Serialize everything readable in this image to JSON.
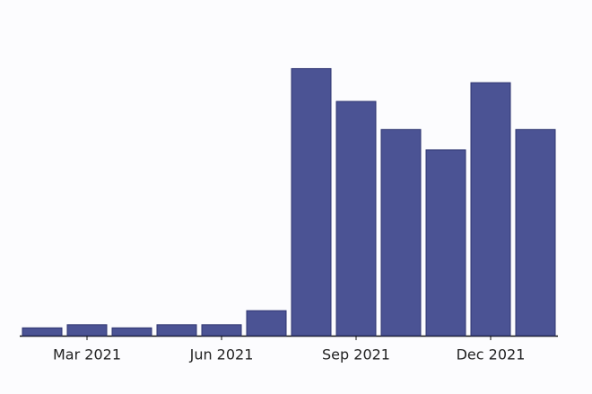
{
  "chart_data": {
    "type": "bar",
    "categories": [
      null,
      "Mar 2021",
      null,
      null,
      "Jun 2021",
      null,
      null,
      "Sep 2021",
      null,
      null,
      "Dec 2021",
      null
    ],
    "values": [
      0.05,
      0.07,
      0.05,
      0.07,
      0.07,
      0.16,
      1.71,
      1.5,
      1.32,
      1.19,
      1.62,
      1.32
    ],
    "color": "#4b5394",
    "ylim": [
      0,
      2
    ]
  }
}
